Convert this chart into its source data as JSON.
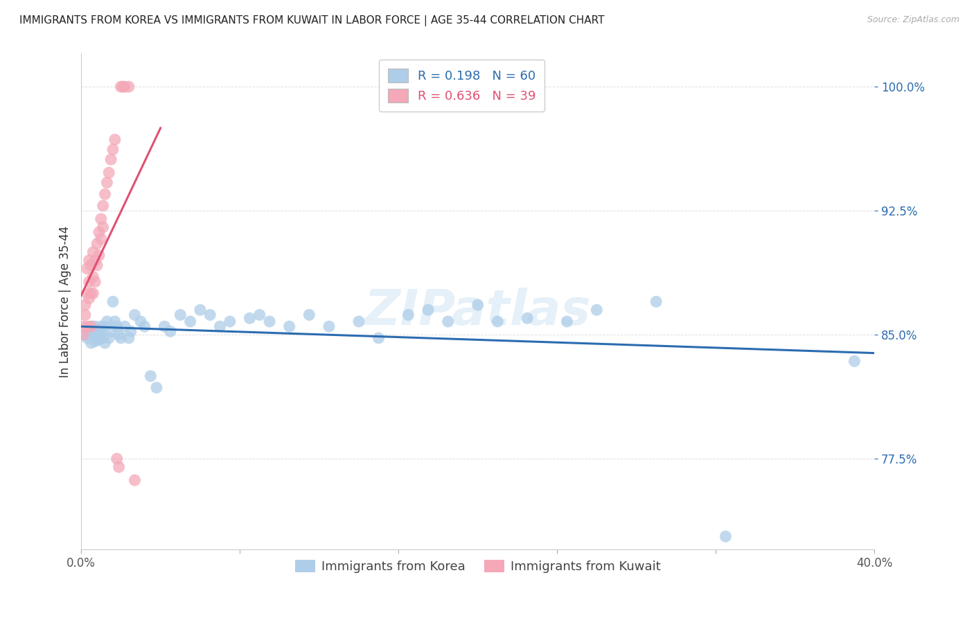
{
  "title": "IMMIGRANTS FROM KOREA VS IMMIGRANTS FROM KUWAIT IN LABOR FORCE | AGE 35-44 CORRELATION CHART",
  "source": "Source: ZipAtlas.com",
  "ylabel": "In Labor Force | Age 35-44",
  "xlim": [
    0.0,
    0.4
  ],
  "ylim": [
    0.72,
    1.02
  ],
  "yticks": [
    0.775,
    0.85,
    0.925,
    1.0
  ],
  "ytick_labels": [
    "77.5%",
    "85.0%",
    "92.5%",
    "100.0%"
  ],
  "xticks": [
    0.0,
    0.08,
    0.16,
    0.24,
    0.32,
    0.4
  ],
  "xtick_labels": [
    "0.0%",
    "",
    "",
    "",
    "",
    "40.0%"
  ],
  "korea_R": 0.198,
  "korea_N": 60,
  "kuwait_R": 0.636,
  "kuwait_N": 39,
  "korea_color": "#aecde8",
  "kuwait_color": "#f4a8b8",
  "korea_line_color": "#2b6cb0",
  "kuwait_line_color": "#e05070",
  "watermark": "ZIPatlas",
  "korea_x": [
    0.002,
    0.003,
    0.004,
    0.005,
    0.005,
    0.006,
    0.007,
    0.007,
    0.008,
    0.008,
    0.009,
    0.009,
    0.01,
    0.01,
    0.011,
    0.012,
    0.012,
    0.013,
    0.014,
    0.015,
    0.016,
    0.017,
    0.018,
    0.019,
    0.02,
    0.022,
    0.024,
    0.025,
    0.027,
    0.03,
    0.032,
    0.035,
    0.038,
    0.042,
    0.045,
    0.05,
    0.055,
    0.06,
    0.065,
    0.07,
    0.075,
    0.085,
    0.09,
    0.095,
    0.105,
    0.115,
    0.125,
    0.14,
    0.15,
    0.165,
    0.175,
    0.185,
    0.2,
    0.21,
    0.225,
    0.245,
    0.26,
    0.29,
    0.325,
    0.39
  ],
  "korea_y": [
    0.85,
    0.848,
    0.852,
    0.855,
    0.845,
    0.85,
    0.846,
    0.855,
    0.848,
    0.852,
    0.853,
    0.847,
    0.85,
    0.855,
    0.848,
    0.855,
    0.845,
    0.858,
    0.848,
    0.852,
    0.87,
    0.858,
    0.855,
    0.85,
    0.848,
    0.855,
    0.848,
    0.852,
    0.862,
    0.858,
    0.855,
    0.825,
    0.818,
    0.855,
    0.852,
    0.862,
    0.858,
    0.865,
    0.862,
    0.855,
    0.858,
    0.86,
    0.862,
    0.858,
    0.855,
    0.862,
    0.855,
    0.858,
    0.848,
    0.862,
    0.865,
    0.858,
    0.868,
    0.858,
    0.86,
    0.858,
    0.865,
    0.87,
    0.728,
    0.834
  ],
  "kuwait_x": [
    0.001,
    0.001,
    0.002,
    0.002,
    0.003,
    0.003,
    0.003,
    0.004,
    0.004,
    0.004,
    0.005,
    0.005,
    0.005,
    0.006,
    0.006,
    0.006,
    0.007,
    0.007,
    0.008,
    0.008,
    0.009,
    0.009,
    0.01,
    0.01,
    0.011,
    0.011,
    0.012,
    0.013,
    0.014,
    0.015,
    0.016,
    0.017,
    0.018,
    0.019,
    0.02,
    0.021,
    0.022,
    0.024,
    0.027
  ],
  "kuwait_y": [
    0.85,
    0.855,
    0.862,
    0.868,
    0.855,
    0.875,
    0.89,
    0.872,
    0.882,
    0.895,
    0.855,
    0.875,
    0.892,
    0.875,
    0.885,
    0.9,
    0.882,
    0.895,
    0.892,
    0.905,
    0.898,
    0.912,
    0.908,
    0.92,
    0.915,
    0.928,
    0.935,
    0.942,
    0.948,
    0.956,
    0.962,
    0.968,
    0.775,
    0.77,
    1.0,
    1.0,
    1.0,
    1.0,
    0.762
  ],
  "legend_korea": "R = 0.198   N = 60",
  "legend_kuwait": "R = 0.636   N = 39",
  "bottom_legend_korea": "Immigrants from Korea",
  "bottom_legend_kuwait": "Immigrants from Kuwait"
}
